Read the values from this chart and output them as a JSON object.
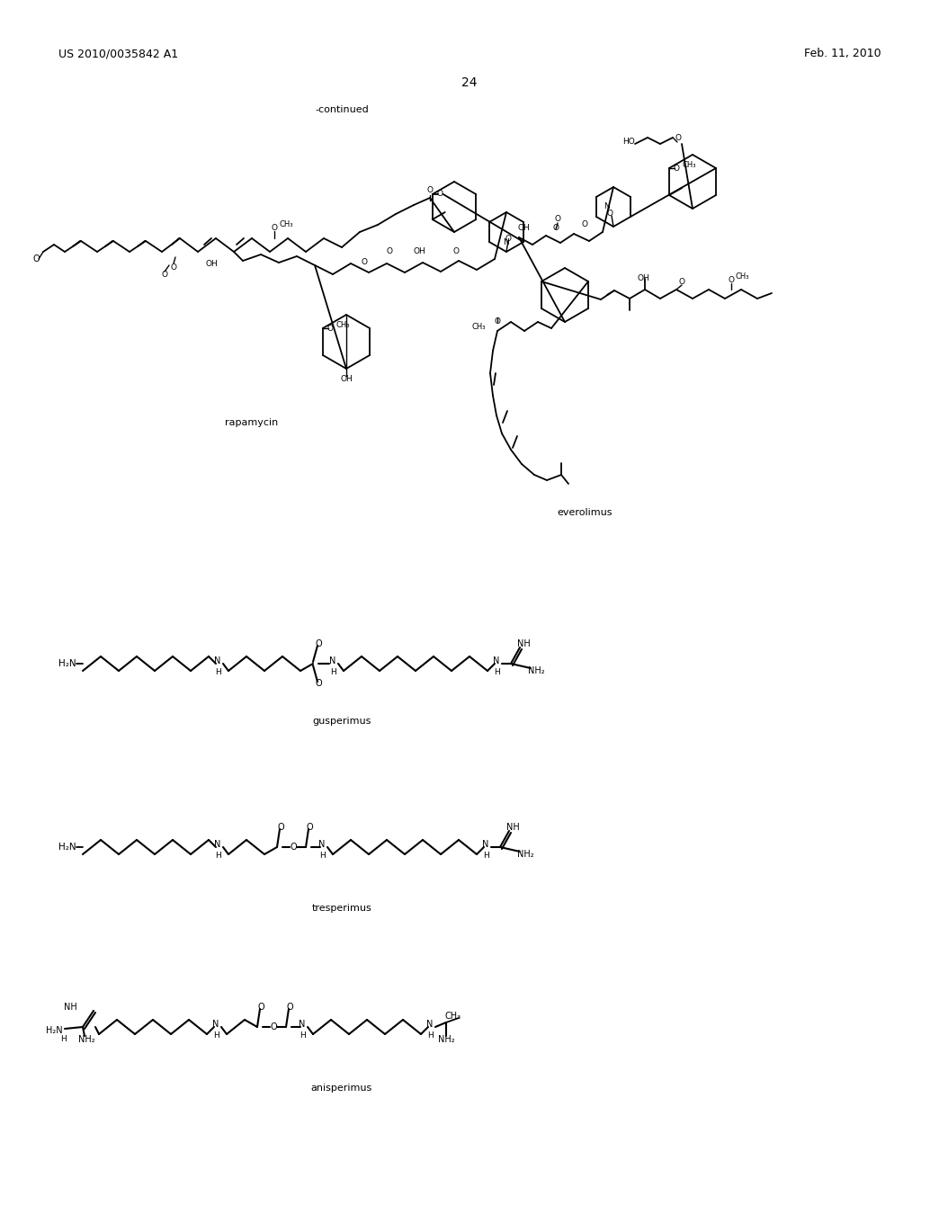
{
  "page_number": "24",
  "patent_number": "US 2010/0035842 A1",
  "patent_date": "Feb. 11, 2010",
  "continued_label": "-continued",
  "compound_labels": [
    "rapamycin",
    "everolimus",
    "gusperimus",
    "tresperimus",
    "anisperimus"
  ],
  "bg_color": "#ffffff",
  "text_color": "#000000",
  "font_size_header": 9,
  "font_size_label": 8,
  "font_size_page": 10
}
